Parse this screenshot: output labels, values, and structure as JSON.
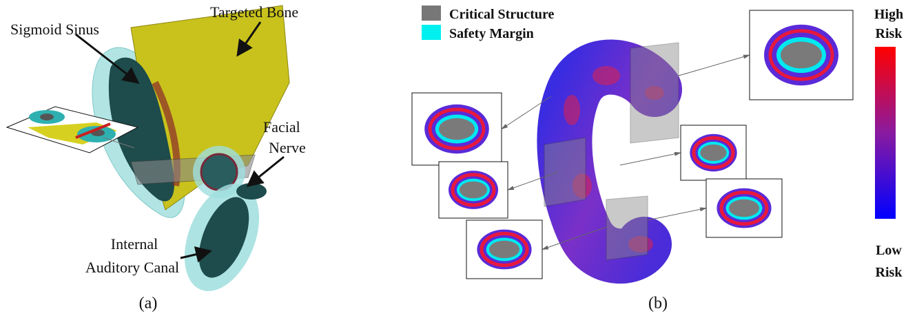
{
  "panel_a": {
    "caption": "(a)",
    "labels": {
      "targeted_bone": [
        "Targeted Bone"
      ],
      "sigmoid_sinus": [
        "Sigmoid Sinus"
      ],
      "facial_nerve": [
        "Facial",
        "Nerve"
      ],
      "internal_auditory_canal": [
        "Internal",
        "Auditory Canal"
      ]
    }
  },
  "panel_b": {
    "caption": "(b)",
    "legend": [
      "Critical Structure",
      "Safety Margin"
    ],
    "colorbar": {
      "top": [
        "High",
        "Risk"
      ],
      "bottom": [
        "Low",
        "Risk"
      ]
    }
  }
}
